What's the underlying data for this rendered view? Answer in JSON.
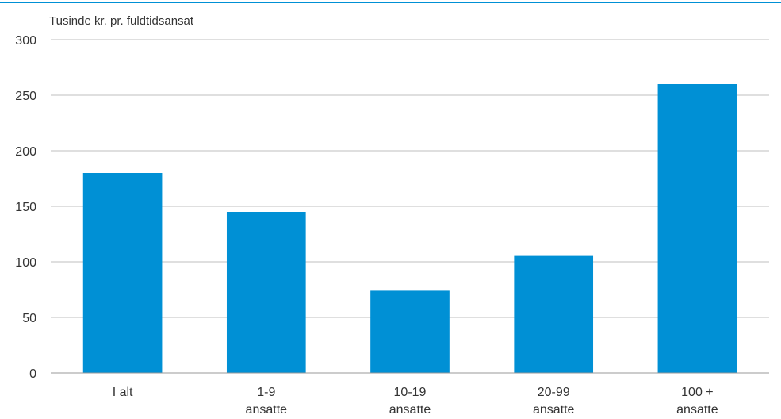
{
  "chart_data": {
    "type": "bar",
    "unit_label": "Tusinde kr. pr. fuldtidsansat",
    "categories": [
      [
        "I alt"
      ],
      [
        "1-9",
        "ansatte"
      ],
      [
        "10-19",
        "ansatte"
      ],
      [
        "20-99",
        "ansatte"
      ],
      [
        "100 +",
        "ansatte"
      ]
    ],
    "values": [
      180,
      145,
      74,
      106,
      260
    ],
    "ylim": [
      0,
      300
    ],
    "yticks": [
      0,
      50,
      100,
      150,
      200,
      250,
      300
    ],
    "grid": true,
    "colors": {
      "bar": "#0090d5",
      "grid": "#bfbfbf",
      "axis": "#999999",
      "top_rule": "#0090d5"
    }
  }
}
